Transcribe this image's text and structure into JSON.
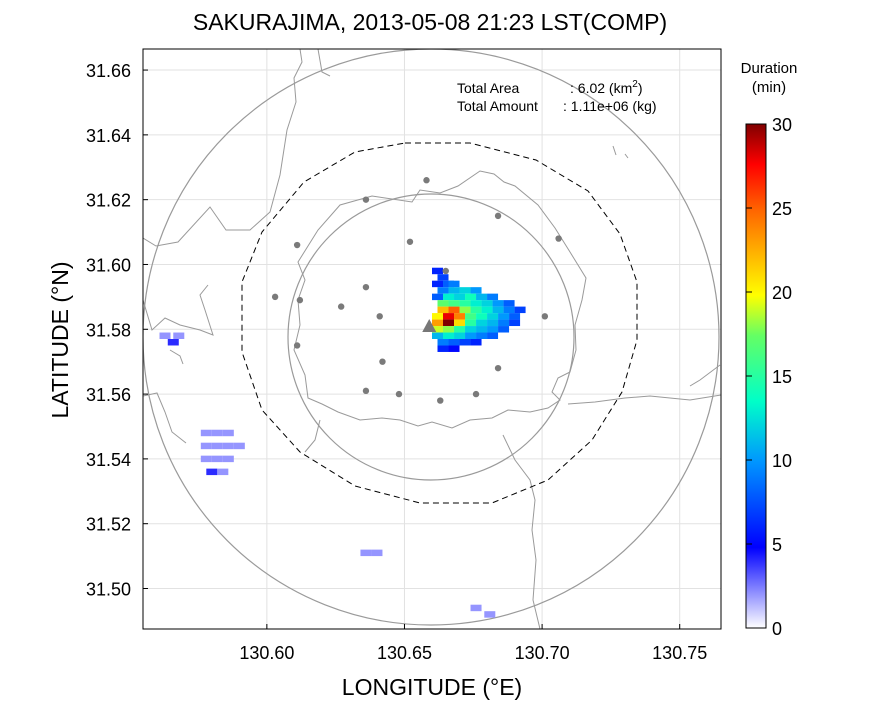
{
  "chart_data": {
    "type": "heatmap",
    "title": "SAKURAJIMA, 2013-05-08 21:23 LST(COMP)",
    "xlabel": "LONGITUDE (°E)",
    "ylabel": "LATITUDE (°N)",
    "xlim": [
      130.555,
      130.765
    ],
    "ylim": [
      31.4875,
      31.6665
    ],
    "x_ticks": [
      "130.60",
      "130.65",
      "130.70",
      "130.75"
    ],
    "y_ticks": [
      "31.50",
      "31.52",
      "31.54",
      "31.56",
      "31.58",
      "31.60",
      "31.62",
      "31.64",
      "31.66"
    ],
    "grid": true,
    "annotations": {
      "area_label": "Total Area",
      "area_value": ": 6.02 (km",
      "area_sup": "2",
      "area_close": ")",
      "amount_label": "Total Amount",
      "amount_value": ": 1.11e+06 (kg)"
    },
    "colorbar": {
      "title_line1": "Duration",
      "title_line2": "(min)",
      "range": [
        0,
        30
      ],
      "ticks": [
        "0",
        "5",
        "10",
        "15",
        "20",
        "25",
        "30"
      ]
    },
    "crater": {
      "lon": 130.659,
      "lat": 31.581
    },
    "range_rings_km": [
      8,
      15
    ],
    "stations": [
      {
        "lon": 130.658,
        "lat": 31.626
      },
      {
        "lon": 130.636,
        "lat": 31.62
      },
      {
        "lon": 130.684,
        "lat": 31.615
      },
      {
        "lon": 130.611,
        "lat": 31.606
      },
      {
        "lon": 130.652,
        "lat": 31.607
      },
      {
        "lon": 130.665,
        "lat": 31.598
      },
      {
        "lon": 130.706,
        "lat": 31.608
      },
      {
        "lon": 130.603,
        "lat": 31.59
      },
      {
        "lon": 130.612,
        "lat": 31.589
      },
      {
        "lon": 130.636,
        "lat": 31.593
      },
      {
        "lon": 130.627,
        "lat": 31.587
      },
      {
        "lon": 130.641,
        "lat": 31.584
      },
      {
        "lon": 130.701,
        "lat": 31.584
      },
      {
        "lon": 130.611,
        "lat": 31.575
      },
      {
        "lon": 130.642,
        "lat": 31.57
      },
      {
        "lon": 130.684,
        "lat": 31.568
      },
      {
        "lon": 130.636,
        "lat": 31.561
      },
      {
        "lon": 130.648,
        "lat": 31.56
      },
      {
        "lon": 130.663,
        "lat": 31.558
      },
      {
        "lon": 130.676,
        "lat": 31.56
      }
    ],
    "cells": [
      {
        "lon": 130.662,
        "lat": 31.598,
        "v": 6
      },
      {
        "lon": 130.664,
        "lat": 31.596,
        "v": 7
      },
      {
        "lon": 130.662,
        "lat": 31.594,
        "v": 6
      },
      {
        "lon": 130.666,
        "lat": 31.594,
        "v": 8
      },
      {
        "lon": 130.668,
        "lat": 31.594,
        "v": 9
      },
      {
        "lon": 130.664,
        "lat": 31.592,
        "v": 9
      },
      {
        "lon": 130.668,
        "lat": 31.592,
        "v": 11
      },
      {
        "lon": 130.672,
        "lat": 31.592,
        "v": 12
      },
      {
        "lon": 130.676,
        "lat": 31.592,
        "v": 10
      },
      {
        "lon": 130.662,
        "lat": 31.59,
        "v": 8
      },
      {
        "lon": 130.666,
        "lat": 31.59,
        "v": 13
      },
      {
        "lon": 130.67,
        "lat": 31.59,
        "v": 12
      },
      {
        "lon": 130.674,
        "lat": 31.59,
        "v": 14
      },
      {
        "lon": 130.678,
        "lat": 31.59,
        "v": 11
      },
      {
        "lon": 130.682,
        "lat": 31.59,
        "v": 9
      },
      {
        "lon": 130.664,
        "lat": 31.588,
        "v": 17
      },
      {
        "lon": 130.668,
        "lat": 31.588,
        "v": 16
      },
      {
        "lon": 130.672,
        "lat": 31.588,
        "v": 15
      },
      {
        "lon": 130.676,
        "lat": 31.588,
        "v": 13
      },
      {
        "lon": 130.68,
        "lat": 31.588,
        "v": 12
      },
      {
        "lon": 130.684,
        "lat": 31.588,
        "v": 10
      },
      {
        "lon": 130.688,
        "lat": 31.588,
        "v": 8
      },
      {
        "lon": 130.664,
        "lat": 31.586,
        "v": 22
      },
      {
        "lon": 130.668,
        "lat": 31.586,
        "v": 25
      },
      {
        "lon": 130.672,
        "lat": 31.586,
        "v": 18
      },
      {
        "lon": 130.676,
        "lat": 31.586,
        "v": 15
      },
      {
        "lon": 130.68,
        "lat": 31.586,
        "v": 13
      },
      {
        "lon": 130.684,
        "lat": 31.586,
        "v": 11
      },
      {
        "lon": 130.688,
        "lat": 31.586,
        "v": 9
      },
      {
        "lon": 130.692,
        "lat": 31.586,
        "v": 7
      },
      {
        "lon": 130.662,
        "lat": 31.584,
        "v": 20
      },
      {
        "lon": 130.666,
        "lat": 31.584,
        "v": 28
      },
      {
        "lon": 130.67,
        "lat": 31.584,
        "v": 24
      },
      {
        "lon": 130.674,
        "lat": 31.584,
        "v": 16
      },
      {
        "lon": 130.678,
        "lat": 31.584,
        "v": 14
      },
      {
        "lon": 130.682,
        "lat": 31.584,
        "v": 12
      },
      {
        "lon": 130.686,
        "lat": 31.584,
        "v": 10
      },
      {
        "lon": 130.69,
        "lat": 31.584,
        "v": 8
      },
      {
        "lon": 130.662,
        "lat": 31.582,
        "v": 23
      },
      {
        "lon": 130.666,
        "lat": 31.582,
        "v": 30
      },
      {
        "lon": 130.67,
        "lat": 31.582,
        "v": 21
      },
      {
        "lon": 130.674,
        "lat": 31.582,
        "v": 15
      },
      {
        "lon": 130.678,
        "lat": 31.582,
        "v": 12
      },
      {
        "lon": 130.682,
        "lat": 31.582,
        "v": 11
      },
      {
        "lon": 130.686,
        "lat": 31.582,
        "v": 9
      },
      {
        "lon": 130.69,
        "lat": 31.582,
        "v": 7
      },
      {
        "lon": 130.662,
        "lat": 31.58,
        "v": 19
      },
      {
        "lon": 130.666,
        "lat": 31.58,
        "v": 18
      },
      {
        "lon": 130.67,
        "lat": 31.58,
        "v": 15
      },
      {
        "lon": 130.674,
        "lat": 31.58,
        "v": 12
      },
      {
        "lon": 130.678,
        "lat": 31.58,
        "v": 11
      },
      {
        "lon": 130.682,
        "lat": 31.58,
        "v": 10
      },
      {
        "lon": 130.686,
        "lat": 31.58,
        "v": 8
      },
      {
        "lon": 130.662,
        "lat": 31.578,
        "v": 11
      },
      {
        "lon": 130.666,
        "lat": 31.578,
        "v": 13
      },
      {
        "lon": 130.67,
        "lat": 31.578,
        "v": 12
      },
      {
        "lon": 130.674,
        "lat": 31.578,
        "v": 10
      },
      {
        "lon": 130.678,
        "lat": 31.578,
        "v": 9
      },
      {
        "lon": 130.682,
        "lat": 31.578,
        "v": 8
      },
      {
        "lon": 130.664,
        "lat": 31.576,
        "v": 9
      },
      {
        "lon": 130.668,
        "lat": 31.576,
        "v": 8
      },
      {
        "lon": 130.672,
        "lat": 31.576,
        "v": 7
      },
      {
        "lon": 130.676,
        "lat": 31.576,
        "v": 6
      },
      {
        "lon": 130.664,
        "lat": 31.574,
        "v": 6
      },
      {
        "lon": 130.668,
        "lat": 31.574,
        "v": 5
      },
      {
        "lon": 130.563,
        "lat": 31.578,
        "v": 2
      },
      {
        "lon": 130.566,
        "lat": 31.576,
        "v": 4
      },
      {
        "lon": 130.568,
        "lat": 31.578,
        "v": 2
      },
      {
        "lon": 130.578,
        "lat": 31.548,
        "v": 2
      },
      {
        "lon": 130.582,
        "lat": 31.548,
        "v": 2
      },
      {
        "lon": 130.586,
        "lat": 31.548,
        "v": 2
      },
      {
        "lon": 130.578,
        "lat": 31.544,
        "v": 2
      },
      {
        "lon": 130.582,
        "lat": 31.544,
        "v": 2
      },
      {
        "lon": 130.586,
        "lat": 31.544,
        "v": 2
      },
      {
        "lon": 130.59,
        "lat": 31.544,
        "v": 2
      },
      {
        "lon": 130.578,
        "lat": 31.54,
        "v": 2
      },
      {
        "lon": 130.582,
        "lat": 31.54,
        "v": 2
      },
      {
        "lon": 130.586,
        "lat": 31.54,
        "v": 2
      },
      {
        "lon": 130.58,
        "lat": 31.536,
        "v": 4
      },
      {
        "lon": 130.584,
        "lat": 31.536,
        "v": 2
      },
      {
        "lon": 130.636,
        "lat": 31.511,
        "v": 2
      },
      {
        "lon": 130.64,
        "lat": 31.511,
        "v": 2
      },
      {
        "lon": 130.676,
        "lat": 31.494,
        "v": 2
      },
      {
        "lon": 130.681,
        "lat": 31.492,
        "v": 2
      }
    ]
  }
}
